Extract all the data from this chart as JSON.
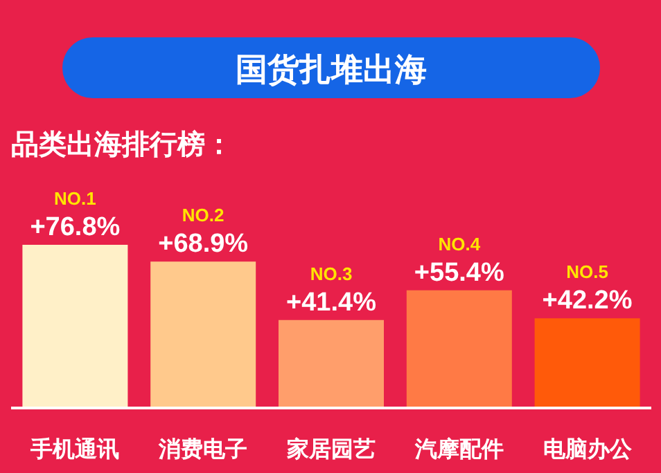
{
  "chart_data": {
    "type": "bar",
    "title": "国货扎堆出海",
    "subtitle": "品类出海排行榜：",
    "categories": [
      "手机通讯",
      "消费电子",
      "家居园艺",
      "汽摩配件",
      "电脑办公"
    ],
    "values": [
      76.8,
      68.9,
      41.4,
      55.4,
      42.2
    ],
    "colors": [
      "#fff0c8",
      "#ffc98c",
      "#ff9e6b",
      "#ff7a45",
      "#ff5a0a"
    ],
    "value_labels": [
      "+76.8%",
      "+68.9%",
      "+41.4%",
      "+55.4%",
      "+42.2%"
    ],
    "annotations": [
      {
        "text": "NO.1",
        "x": "手机通讯",
        "y": 76.8
      },
      {
        "text": "NO.2",
        "x": "消费电子",
        "y": 68.9
      },
      {
        "text": "NO.3",
        "x": "家居园艺",
        "y": 41.4
      },
      {
        "text": "NO.4",
        "x": "汽摩配件",
        "y": 55.4
      },
      {
        "text": "NO.5",
        "x": "电脑办公",
        "y": 42.2
      }
    ]
  }
}
